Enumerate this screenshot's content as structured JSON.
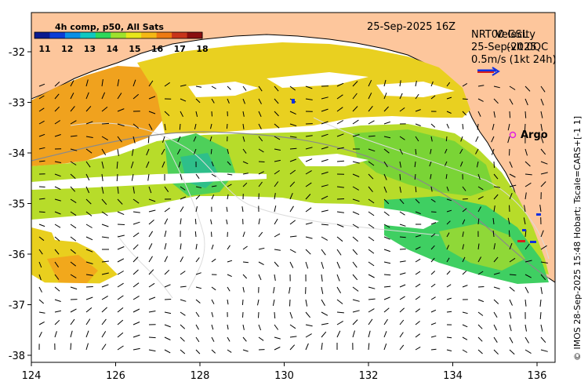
{
  "colorbar": {
    "title": "4h comp, p50, All Sats",
    "ticks": [
      "11",
      "12",
      "13",
      "14",
      "15",
      "16",
      "17",
      "18"
    ],
    "colors": [
      "#0a1a8f",
      "#0b3dd6",
      "#0a8fe6",
      "#10c8c0",
      "#2ed85a",
      "#9ee22c",
      "#e8e61a",
      "#f5b814",
      "#ee7a12",
      "#c8341a",
      "#8a0f0f"
    ]
  },
  "date_label": "25-Sep-2025 16Z",
  "velocity_legend": {
    "line1": "NRT00 GSL",
    "line1_overlay": "Velocity",
    "line2": "25-Sep-2025",
    "line2_overlay": "(vlt 0QC",
    "line3": "0.5m/s (1kt 24h)"
  },
  "argo_label": "Argo",
  "credit": "© IMOS 28-Sep-2025 15:48 Hobart; Tscale=CARS+[-1 1]",
  "axes": {
    "x_ticks": [
      "124",
      "126",
      "128",
      "130",
      "132",
      "134",
      "136"
    ],
    "y_ticks": [
      "-32",
      "-33",
      "-34",
      "-35",
      "-36",
      "-37",
      "-38"
    ]
  },
  "colors": {
    "land": "#fdc69c",
    "ocean_blank": "#ffffff",
    "frame": "#000000"
  }
}
